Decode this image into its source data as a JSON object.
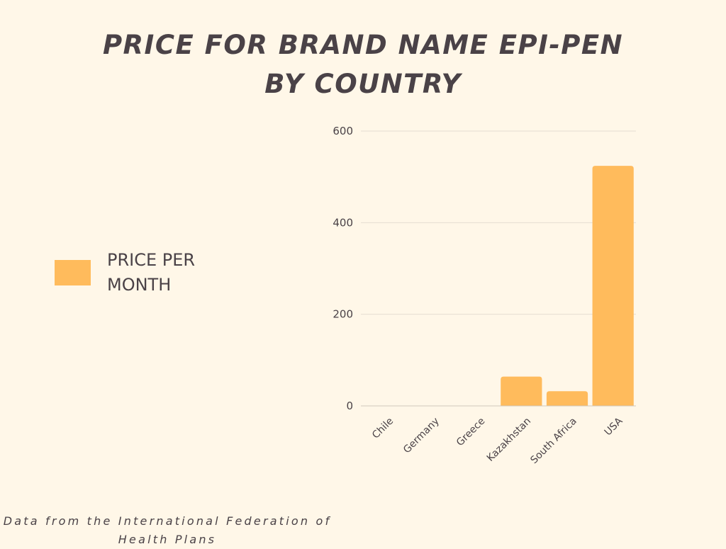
{
  "title_line1": "PRICE FOR BRAND NAME EPI-PEN",
  "title_line2": "BY COUNTRY",
  "legend": {
    "label": "PRICE PER MONTH",
    "color": "#ffbb5c"
  },
  "footer": "Data from the International Federation of Health Plans",
  "chart_data": {
    "type": "bar",
    "categories": [
      "Chile",
      "Germany",
      "Greece",
      "Kazakhstan",
      "South Africa",
      "USA"
    ],
    "series": [
      {
        "name": "PRICE PER MONTH",
        "values": [
          0,
          0,
          0,
          64,
          32,
          524
        ],
        "color": "#ffbb5c"
      }
    ],
    "yticks": [
      "0",
      "200",
      "400",
      "600"
    ],
    "ylim": [
      0,
      600
    ],
    "grid": true,
    "legend_position": "left"
  }
}
